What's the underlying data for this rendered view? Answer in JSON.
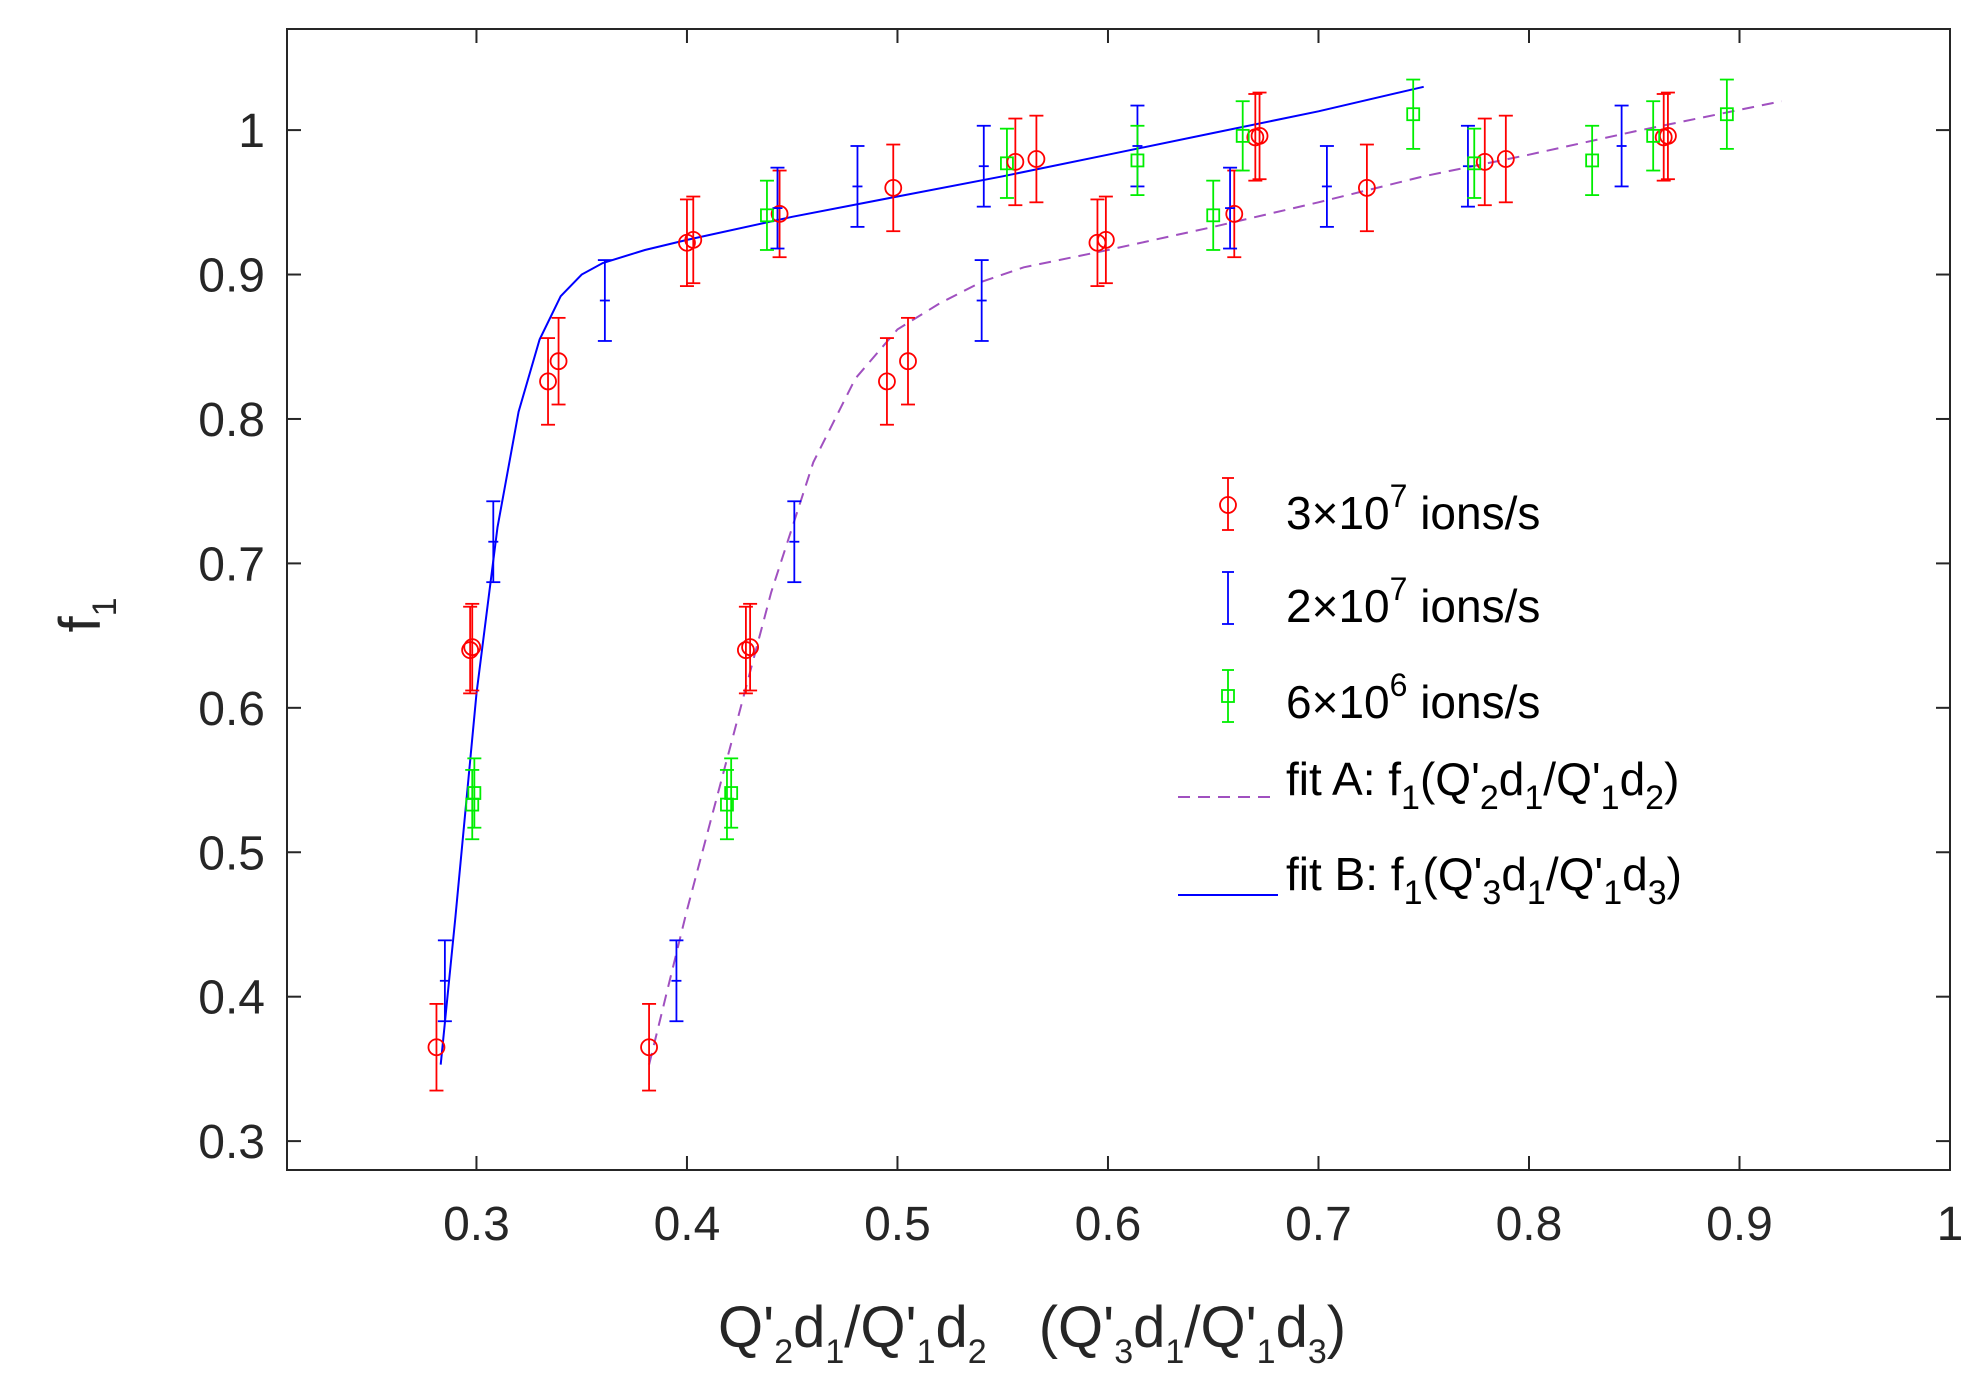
{
  "chart_data": {
    "type": "scatter",
    "title": "",
    "xlabel": {
      "q3": "Q'",
      "sub3": "3",
      "d1": "d",
      "sub1": "1",
      "slash": "/Q'",
      "sub1b": "1",
      "d3": "d",
      "sub3b": "3"
    },
    "ylabel": "f",
    "ylabel_sub": "1",
    "xlim": [
      0.21,
      1.0
    ],
    "ylim": [
      0.28,
      1.07
    ],
    "xticks": [
      0.3,
      0.4,
      0.5,
      0.6,
      0.7,
      0.8,
      0.9,
      1
    ],
    "xtick_labels": [
      "0.3",
      "0.4",
      "0.5",
      "0.6",
      "0.7",
      "0.8",
      "0.9",
      "1"
    ],
    "yticks": [
      0.3,
      0.4,
      0.5,
      0.6,
      0.7,
      0.8,
      0.9,
      1
    ],
    "ytick_labels": [
      "0.3",
      "0.4",
      "0.5",
      "0.6",
      "0.7",
      "0.8",
      "0.9",
      "1"
    ],
    "legend_position": "middle-right",
    "series": [
      {
        "name": "3×10^7 ions/s",
        "legend_prefix": "3×10",
        "legend_sup": "7",
        "legend_suffix": " ions/s",
        "marker": "circle",
        "color": "#ff0000",
        "points": [
          {
            "x": 0.281,
            "y": 0.365,
            "err": 0.03
          },
          {
            "x": 0.297,
            "y": 0.64,
            "err": 0.03
          },
          {
            "x": 0.298,
            "y": 0.642,
            "err": 0.03
          },
          {
            "x": 0.334,
            "y": 0.826,
            "err": 0.03
          },
          {
            "x": 0.339,
            "y": 0.84,
            "err": 0.03
          },
          {
            "x": 0.4,
            "y": 0.922,
            "err": 0.03
          },
          {
            "x": 0.403,
            "y": 0.924,
            "err": 0.03
          },
          {
            "x": 0.444,
            "y": 0.942,
            "err": 0.03
          },
          {
            "x": 0.498,
            "y": 0.96,
            "err": 0.03
          },
          {
            "x": 0.556,
            "y": 0.978,
            "err": 0.03
          },
          {
            "x": 0.566,
            "y": 0.98,
            "err": 0.03
          },
          {
            "x": 0.67,
            "y": 0.995,
            "err": 0.03
          },
          {
            "x": 0.672,
            "y": 0.996,
            "err": 0.03
          },
          {
            "x": 0.382,
            "y": 0.365,
            "err": 0.03
          },
          {
            "x": 0.428,
            "y": 0.64,
            "err": 0.03
          },
          {
            "x": 0.43,
            "y": 0.642,
            "err": 0.03
          },
          {
            "x": 0.495,
            "y": 0.826,
            "err": 0.03
          },
          {
            "x": 0.505,
            "y": 0.84,
            "err": 0.03
          },
          {
            "x": 0.595,
            "y": 0.922,
            "err": 0.03
          },
          {
            "x": 0.599,
            "y": 0.924,
            "err": 0.03
          },
          {
            "x": 0.66,
            "y": 0.942,
            "err": 0.03
          },
          {
            "x": 0.723,
            "y": 0.96,
            "err": 0.03
          },
          {
            "x": 0.779,
            "y": 0.978,
            "err": 0.03
          },
          {
            "x": 0.789,
            "y": 0.98,
            "err": 0.03
          },
          {
            "x": 0.864,
            "y": 0.995,
            "err": 0.03
          },
          {
            "x": 0.866,
            "y": 0.996,
            "err": 0.03
          }
        ]
      },
      {
        "name": "2×10^7 ions/s",
        "legend_prefix": "2×10",
        "legend_sup": "7",
        "legend_suffix": " ions/s",
        "marker": "none",
        "color": "#0000ff",
        "points": [
          {
            "x": 0.285,
            "y": 0.411,
            "err": 0.028
          },
          {
            "x": 0.308,
            "y": 0.715,
            "err": 0.028
          },
          {
            "x": 0.361,
            "y": 0.882,
            "err": 0.028
          },
          {
            "x": 0.443,
            "y": 0.946,
            "err": 0.028
          },
          {
            "x": 0.481,
            "y": 0.961,
            "err": 0.028
          },
          {
            "x": 0.541,
            "y": 0.975,
            "err": 0.028
          },
          {
            "x": 0.614,
            "y": 0.989,
            "err": 0.028
          },
          {
            "x": 0.395,
            "y": 0.411,
            "err": 0.028
          },
          {
            "x": 0.451,
            "y": 0.715,
            "err": 0.028
          },
          {
            "x": 0.54,
            "y": 0.882,
            "err": 0.028
          },
          {
            "x": 0.658,
            "y": 0.946,
            "err": 0.028
          },
          {
            "x": 0.704,
            "y": 0.961,
            "err": 0.028
          },
          {
            "x": 0.771,
            "y": 0.975,
            "err": 0.028
          },
          {
            "x": 0.844,
            "y": 0.989,
            "err": 0.028
          }
        ]
      },
      {
        "name": "6×10^6 ions/s",
        "legend_prefix": "6×10",
        "legend_sup": "6",
        "legend_suffix": " ions/s",
        "marker": "square",
        "color": "#00ee00",
        "points": [
          {
            "x": 0.298,
            "y": 0.533,
            "err": 0.024
          },
          {
            "x": 0.299,
            "y": 0.541,
            "err": 0.024
          },
          {
            "x": 0.438,
            "y": 0.941,
            "err": 0.024
          },
          {
            "x": 0.552,
            "y": 0.977,
            "err": 0.024
          },
          {
            "x": 0.614,
            "y": 0.979,
            "err": 0.024
          },
          {
            "x": 0.664,
            "y": 0.996,
            "err": 0.024
          },
          {
            "x": 0.745,
            "y": 1.011,
            "err": 0.024
          },
          {
            "x": 0.419,
            "y": 0.533,
            "err": 0.024
          },
          {
            "x": 0.421,
            "y": 0.541,
            "err": 0.024
          },
          {
            "x": 0.65,
            "y": 0.941,
            "err": 0.024
          },
          {
            "x": 0.774,
            "y": 0.977,
            "err": 0.024
          },
          {
            "x": 0.83,
            "y": 0.979,
            "err": 0.024
          },
          {
            "x": 0.859,
            "y": 0.996,
            "err": 0.024
          },
          {
            "x": 0.894,
            "y": 1.011,
            "err": 0.024
          }
        ]
      }
    ],
    "fits": [
      {
        "name": "fit A",
        "legend_prefix": "fit A: f",
        "legend_s1": "1",
        "legend_p1": "(Q'",
        "legend_s2": "2",
        "legend_p2": "d",
        "legend_s3": "1",
        "legend_p3": "/Q'",
        "legend_s4": "1",
        "legend_p4": "d",
        "legend_s5": "2",
        "legend_p5": ")",
        "style": "dashed",
        "color": "#a050c0",
        "x": [
          0.382,
          0.4,
          0.42,
          0.44,
          0.46,
          0.48,
          0.5,
          0.52,
          0.54,
          0.56,
          0.6,
          0.65,
          0.7,
          0.75,
          0.8,
          0.85,
          0.92
        ],
        "y": [
          0.353,
          0.46,
          0.57,
          0.68,
          0.77,
          0.828,
          0.862,
          0.88,
          0.895,
          0.905,
          0.917,
          0.933,
          0.95,
          0.968,
          0.983,
          0.999,
          1.02
        ]
      },
      {
        "name": "fit B",
        "legend_prefix": "fit B: f",
        "legend_s1": "1",
        "legend_p1": "(Q'",
        "legend_s2": "3",
        "legend_p2": "d",
        "legend_s3": "1",
        "legend_p3": "/Q'",
        "legend_s4": "1",
        "legend_p4": "d",
        "legend_s5": "3",
        "legend_p5": ")",
        "style": "solid",
        "color": "#0000ff",
        "x": [
          0.283,
          0.29,
          0.3,
          0.31,
          0.32,
          0.33,
          0.34,
          0.35,
          0.36,
          0.38,
          0.4,
          0.45,
          0.5,
          0.55,
          0.6,
          0.65,
          0.7,
          0.75
        ],
        "y": [
          0.353,
          0.455,
          0.61,
          0.725,
          0.805,
          0.855,
          0.885,
          0.9,
          0.908,
          0.917,
          0.924,
          0.94,
          0.954,
          0.968,
          0.983,
          0.998,
          1.013,
          1.03
        ]
      }
    ]
  }
}
